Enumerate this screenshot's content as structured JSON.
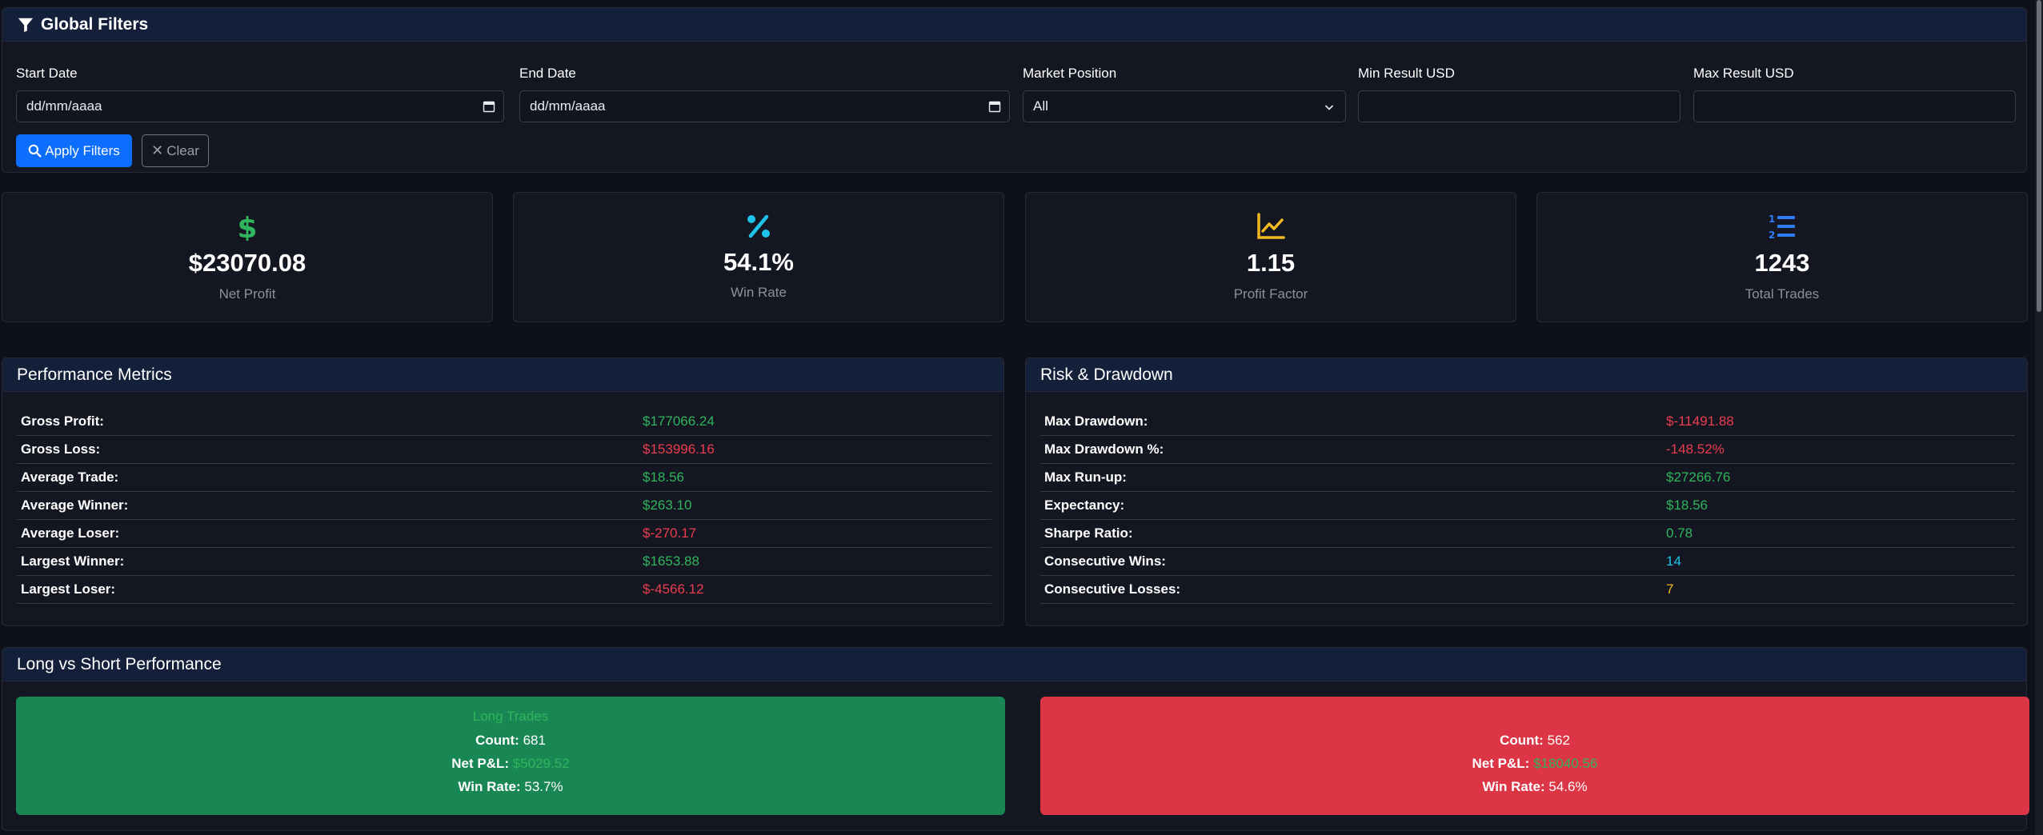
{
  "filters": {
    "title": "Global Filters",
    "start_date_label": "Start Date",
    "start_date_placeholder": "dd/mm/aaaa",
    "end_date_label": "End Date",
    "end_date_placeholder": "dd/mm/aaaa",
    "market_position_label": "Market Position",
    "market_position_value": "All",
    "min_result_label": "Min Result USD",
    "min_result_value": "",
    "max_result_label": "Max Result USD",
    "max_result_value": "",
    "apply_label": "Apply Filters",
    "clear_label": "Clear"
  },
  "stats": [
    {
      "icon": "dollar-icon",
      "value": "$23070.08",
      "label": "Net Profit",
      "color": "#2fb55c"
    },
    {
      "icon": "percent-icon",
      "value": "54.1%",
      "label": "Win Rate",
      "color": "#1fc3ea"
    },
    {
      "icon": "chart-line-icon",
      "value": "1.15",
      "label": "Profit Factor",
      "color": "#f2b821"
    },
    {
      "icon": "list-ol-icon",
      "value": "1243",
      "label": "Total Trades",
      "color": "#2f7df6"
    }
  ],
  "performance": {
    "title": "Performance Metrics",
    "rows": [
      {
        "label": "Gross Profit:",
        "value": "$177066.24",
        "tone": "green"
      },
      {
        "label": "Gross Loss:",
        "value": "$153996.16",
        "tone": "red"
      },
      {
        "label": "Average Trade:",
        "value": "$18.56",
        "tone": "green"
      },
      {
        "label": "Average Winner:",
        "value": "$263.10",
        "tone": "green"
      },
      {
        "label": "Average Loser:",
        "value": "$-270.17",
        "tone": "red"
      },
      {
        "label": "Largest Winner:",
        "value": "$1653.88",
        "tone": "green"
      },
      {
        "label": "Largest Loser:",
        "value": "$-4566.12",
        "tone": "red"
      }
    ]
  },
  "risk": {
    "title": "Risk & Drawdown",
    "rows": [
      {
        "label": "Max Drawdown:",
        "value": "$-11491.88",
        "tone": "red"
      },
      {
        "label": "Max Drawdown %:",
        "value": "-148.52%",
        "tone": "red"
      },
      {
        "label": "Max Run-up:",
        "value": "$27266.76",
        "tone": "green"
      },
      {
        "label": "Expectancy:",
        "value": "$18.56",
        "tone": "green"
      },
      {
        "label": "Sharpe Ratio:",
        "value": "0.78",
        "tone": "green"
      },
      {
        "label": "Consecutive Wins:",
        "value": "14",
        "tone": "cyan"
      },
      {
        "label": "Consecutive Losses:",
        "value": "7",
        "tone": "yellow"
      }
    ]
  },
  "long_short": {
    "title": "Long vs Short Performance",
    "long": {
      "title": "Long Trades",
      "count_label": "Count:",
      "count": "681",
      "pnl_label": "Net P&L:",
      "pnl": "$5029.52",
      "winrate_label": "Win Rate:",
      "winrate": "53.7%"
    },
    "short": {
      "title": "",
      "count_label": "Count:",
      "count": "562",
      "pnl_label": "Net P&L:",
      "pnl": "$18040.56",
      "winrate_label": "Win Rate:",
      "winrate": "54.6%"
    }
  },
  "colors": {
    "primary": "#0d6efd",
    "success": "#198754",
    "danger": "#dc3545",
    "header_bg": "#14203a",
    "card_bg": "#141722"
  }
}
